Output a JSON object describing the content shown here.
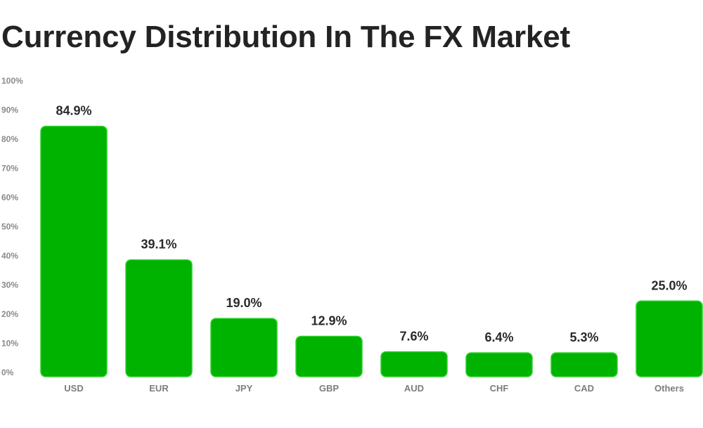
{
  "chart_data": {
    "type": "bar",
    "title": "Currency Distribution In The FX Market",
    "categories": [
      "USD",
      "EUR",
      "JPY",
      "GBP",
      "AUD",
      "CHF",
      "CAD",
      "Others"
    ],
    "values": [
      84.9,
      39.1,
      19.0,
      12.9,
      7.6,
      6.4,
      5.3,
      25.0
    ],
    "value_labels": [
      "84.9%",
      "39.1%",
      "19.0%",
      "12.9%",
      "7.6%",
      "6.4%",
      "5.3%",
      "25.0%"
    ],
    "yticks": [
      "0%",
      "10%",
      "20%",
      "30%",
      "40%",
      "50%",
      "60%",
      "70%",
      "80%",
      "90%",
      "100%"
    ],
    "ylim": [
      0,
      100
    ],
    "xlabel": "",
    "ylabel": "",
    "grid": false,
    "bar_color": "#00b300",
    "bar_outline_color": "#2fd12f"
  }
}
